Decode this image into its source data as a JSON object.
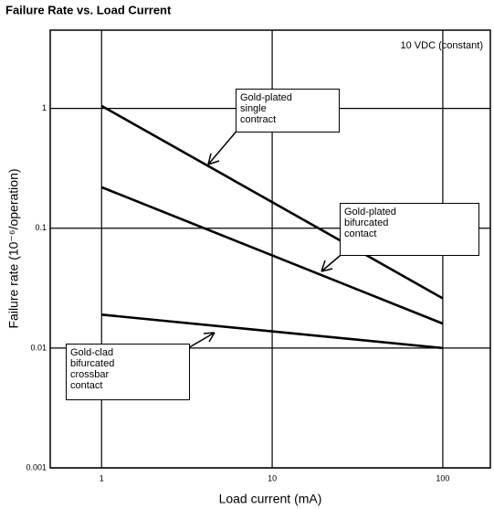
{
  "chart_data": {
    "type": "line",
    "title": "Failure Rate vs. Load Current",
    "annotation": "10 VDC (constant)",
    "x_label": "Load current (mA)",
    "y_label": "Failure rate (10⁻⁶/operation)",
    "log_x": true,
    "log_y": true,
    "grid": true,
    "x": [
      1,
      100
    ],
    "xlim": [
      0.5,
      190
    ],
    "xticks": [
      1,
      10,
      100
    ],
    "ylim": [
      0.001,
      4.5
    ],
    "yticks": [
      0.001,
      0.01,
      0.1,
      1
    ],
    "series": [
      {
        "name": "Gold-plated single contract",
        "color": "#000000",
        "values": [
          1.05,
          0.026
        ]
      },
      {
        "name": "Gold-plated bifurcated contact",
        "color": "#000000",
        "values": [
          0.22,
          0.016
        ]
      },
      {
        "name": "Gold-clad bifurcated crossbar contact",
        "color": "#000000",
        "values": [
          0.019,
          0.01
        ]
      }
    ]
  }
}
